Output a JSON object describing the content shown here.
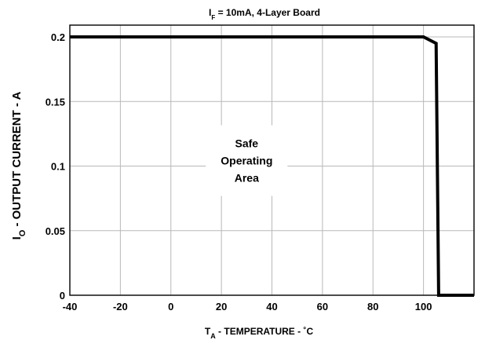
{
  "chart_data": {
    "type": "line",
    "title": {
      "main": "I",
      "sub": "F",
      "rest": " = 10mA, 4-Layer Board"
    },
    "xlabel": {
      "main": "T",
      "sub": "A",
      "rest": " - TEMPERATURE - ˚C"
    },
    "ylabel": {
      "main": "I",
      "sub": "O",
      "rest": " - OUTPUT CURRENT - A"
    },
    "annotation": [
      "Safe",
      "Operating",
      "Area"
    ],
    "xlim": [
      -40,
      120
    ],
    "ylim": [
      0,
      0.2
    ],
    "x_ticks": [
      -40,
      -20,
      0,
      20,
      40,
      60,
      80,
      100
    ],
    "x_tick_labels": [
      "-40",
      "-20",
      "0",
      "20",
      "40",
      "60",
      "80",
      "100"
    ],
    "y_ticks": [
      0,
      0.05,
      0.1,
      0.15,
      0.2
    ],
    "y_tick_labels": [
      "0",
      "0.05",
      "0.1",
      "0.15",
      "0.2"
    ],
    "grid": true,
    "series": [
      {
        "x": [
          -40,
          100,
          105,
          106,
          120
        ],
        "y": [
          0.2,
          0.2,
          0.195,
          0,
          0
        ]
      }
    ]
  }
}
